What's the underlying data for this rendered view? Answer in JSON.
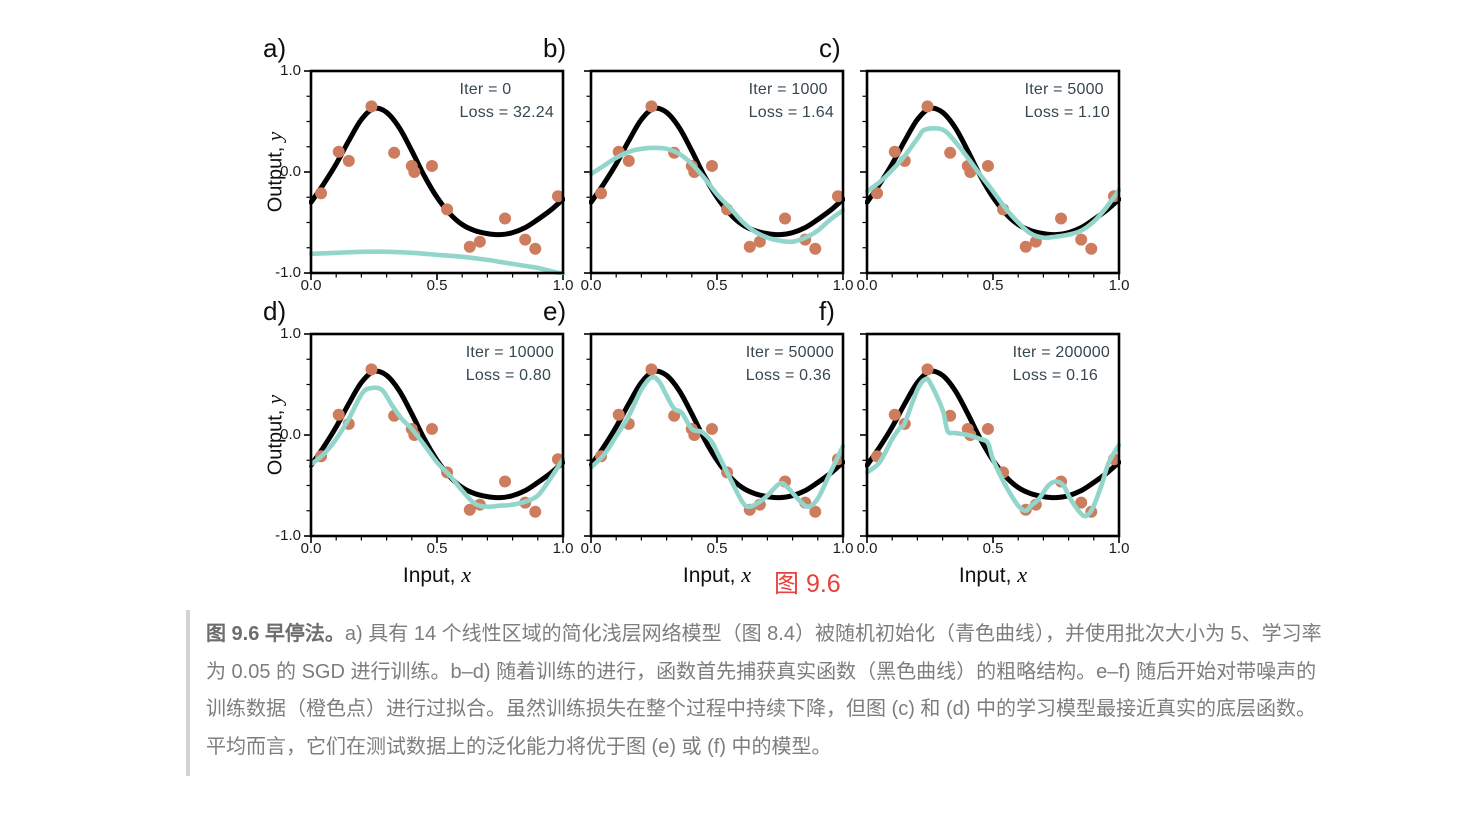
{
  "figure_label": "图 9.6",
  "figure_label_color": "#e8403a",
  "caption": {
    "lead": "图 9.6 早停法。",
    "body": "a) 具有 14 个线性区域的简化浅层网络模型（图 8.4）被随机初始化（青色曲线），并使用批次大小为 5、学习率为 0.05 的 SGD 进行训练。b–d) 随着训练的进行，函数首先捕获真实函数（黑色曲线）的粗略结构。e–f) 随后开始对带噪声的训练数据（橙色点）进行过拟合。虽然训练损失在整个过程中持续下降，但图 (c) 和 (d) 中的学习模型最接近真实的底层函数。平均而言，它们在测试数据上的泛化能力将优于图 (e) 或 (f) 中的模型。"
  },
  "chart_data": {
    "type": "line",
    "title": "",
    "xlabel": {
      "prefix": "Input, ",
      "var": "x"
    },
    "ylabel": {
      "prefix": "Output, ",
      "var": "y"
    },
    "xlim": [
      0,
      1
    ],
    "ylim": [
      -1,
      1
    ],
    "grid": false,
    "legend": "none",
    "x_tick_labels": [
      "0.0",
      "0.5",
      "1.0"
    ],
    "y_tick_labels": [
      "1.0",
      "0.0",
      "-1.0"
    ],
    "x_major_ticks": [
      0,
      0.5,
      1
    ],
    "x_minor_ticks": [
      0.1,
      0.2,
      0.3,
      0.4,
      0.6,
      0.7,
      0.8,
      0.9
    ],
    "y_major_ticks": [
      1,
      0,
      -1
    ],
    "y_minor_ticks": [
      0.75,
      0.5,
      0.25,
      -0.25,
      -0.5,
      -0.75
    ],
    "colors": {
      "true_function": "#000000",
      "model_curve": "#92d6cb",
      "data_points": "#cd7d5e",
      "annotation_text": "#36474f"
    },
    "true_function_points": [
      [
        0.0,
        -0.3
      ],
      [
        0.05,
        -0.12
      ],
      [
        0.1,
        0.08
      ],
      [
        0.15,
        0.31
      ],
      [
        0.2,
        0.52
      ],
      [
        0.25,
        0.63
      ],
      [
        0.3,
        0.59
      ],
      [
        0.35,
        0.44
      ],
      [
        0.4,
        0.21
      ],
      [
        0.45,
        -0.04
      ],
      [
        0.5,
        -0.25
      ],
      [
        0.55,
        -0.41
      ],
      [
        0.6,
        -0.52
      ],
      [
        0.65,
        -0.58
      ],
      [
        0.7,
        -0.61
      ],
      [
        0.75,
        -0.62
      ],
      [
        0.8,
        -0.6
      ],
      [
        0.85,
        -0.55
      ],
      [
        0.9,
        -0.47
      ],
      [
        0.95,
        -0.38
      ],
      [
        1.0,
        -0.27
      ]
    ],
    "data_points": [
      [
        0.04,
        -0.21
      ],
      [
        0.11,
        0.2
      ],
      [
        0.15,
        0.11
      ],
      [
        0.24,
        0.65
      ],
      [
        0.33,
        0.19
      ],
      [
        0.4,
        0.06
      ],
      [
        0.41,
        0.0
      ],
      [
        0.48,
        0.06
      ],
      [
        0.54,
        -0.37
      ],
      [
        0.63,
        -0.74
      ],
      [
        0.67,
        -0.69
      ],
      [
        0.77,
        -0.46
      ],
      [
        0.85,
        -0.67
      ],
      [
        0.89,
        -0.76
      ],
      [
        0.98,
        -0.24
      ]
    ],
    "panels": [
      {
        "label": "a)",
        "iteration": 0,
        "loss": 32.24,
        "iter_text": "Iter = 0",
        "loss_text": "Loss = 32.24",
        "model_curve": [
          [
            0.0,
            -0.81
          ],
          [
            0.1,
            -0.8
          ],
          [
            0.2,
            -0.79
          ],
          [
            0.3,
            -0.79
          ],
          [
            0.4,
            -0.8
          ],
          [
            0.5,
            -0.82
          ],
          [
            0.6,
            -0.84
          ],
          [
            0.7,
            -0.87
          ],
          [
            0.75,
            -0.89
          ],
          [
            0.8,
            -0.91
          ],
          [
            0.85,
            -0.93
          ],
          [
            0.9,
            -0.95
          ],
          [
            0.95,
            -0.98
          ],
          [
            1.0,
            -1.01
          ]
        ]
      },
      {
        "label": "b)",
        "iteration": 1000,
        "loss": 1.64,
        "iter_text": "Iter = 1000",
        "loss_text": "Loss = 1.64",
        "model_curve": [
          [
            0.0,
            -0.02
          ],
          [
            0.05,
            0.06
          ],
          [
            0.1,
            0.14
          ],
          [
            0.15,
            0.2
          ],
          [
            0.2,
            0.23
          ],
          [
            0.25,
            0.24
          ],
          [
            0.3,
            0.23
          ],
          [
            0.35,
            0.18
          ],
          [
            0.4,
            0.08
          ],
          [
            0.45,
            -0.06
          ],
          [
            0.5,
            -0.22
          ],
          [
            0.55,
            -0.35
          ],
          [
            0.6,
            -0.49
          ],
          [
            0.65,
            -0.59
          ],
          [
            0.7,
            -0.65
          ],
          [
            0.75,
            -0.68
          ],
          [
            0.8,
            -0.69
          ],
          [
            0.85,
            -0.65
          ],
          [
            0.9,
            -0.58
          ],
          [
            0.95,
            -0.47
          ],
          [
            1.0,
            -0.38
          ]
        ]
      },
      {
        "label": "c)",
        "iteration": 5000,
        "loss": 1.1,
        "iter_text": "Iter = 5000",
        "loss_text": "Loss = 1.10",
        "model_curve": [
          [
            0.0,
            -0.19
          ],
          [
            0.05,
            -0.1
          ],
          [
            0.1,
            0.02
          ],
          [
            0.15,
            0.16
          ],
          [
            0.2,
            0.33
          ],
          [
            0.23,
            0.42
          ],
          [
            0.3,
            0.42
          ],
          [
            0.35,
            0.3
          ],
          [
            0.4,
            0.14
          ],
          [
            0.45,
            -0.03
          ],
          [
            0.5,
            -0.19
          ],
          [
            0.55,
            -0.36
          ],
          [
            0.6,
            -0.5
          ],
          [
            0.65,
            -0.61
          ],
          [
            0.7,
            -0.65
          ],
          [
            0.75,
            -0.64
          ],
          [
            0.8,
            -0.62
          ],
          [
            0.85,
            -0.58
          ],
          [
            0.9,
            -0.49
          ],
          [
            0.95,
            -0.35
          ],
          [
            1.0,
            -0.18
          ]
        ]
      },
      {
        "label": "d)",
        "iteration": 10000,
        "loss": 0.8,
        "iter_text": "Iter = 10000",
        "loss_text": "Loss = 0.80",
        "model_curve": [
          [
            0.0,
            -0.29
          ],
          [
            0.05,
            -0.19
          ],
          [
            0.1,
            -0.04
          ],
          [
            0.15,
            0.16
          ],
          [
            0.2,
            0.4
          ],
          [
            0.23,
            0.46
          ],
          [
            0.28,
            0.45
          ],
          [
            0.32,
            0.3
          ],
          [
            0.36,
            0.16
          ],
          [
            0.4,
            0.06
          ],
          [
            0.45,
            -0.1
          ],
          [
            0.5,
            -0.27
          ],
          [
            0.55,
            -0.4
          ],
          [
            0.6,
            -0.55
          ],
          [
            0.65,
            -0.68
          ],
          [
            0.7,
            -0.71
          ],
          [
            0.75,
            -0.7
          ],
          [
            0.8,
            -0.69
          ],
          [
            0.85,
            -0.66
          ],
          [
            0.9,
            -0.6
          ],
          [
            0.95,
            -0.43
          ],
          [
            1.0,
            -0.24
          ]
        ]
      },
      {
        "label": "e)",
        "iteration": 50000,
        "loss": 0.36,
        "iter_text": "Iter = 50000",
        "loss_text": "Loss = 0.36",
        "model_curve": [
          [
            0.0,
            -0.32
          ],
          [
            0.05,
            -0.2
          ],
          [
            0.1,
            -0.01
          ],
          [
            0.15,
            0.19
          ],
          [
            0.2,
            0.45
          ],
          [
            0.24,
            0.57
          ],
          [
            0.27,
            0.53
          ],
          [
            0.3,
            0.39
          ],
          [
            0.33,
            0.26
          ],
          [
            0.36,
            0.22
          ],
          [
            0.4,
            0.06
          ],
          [
            0.44,
            0.03
          ],
          [
            0.48,
            -0.07
          ],
          [
            0.5,
            -0.17
          ],
          [
            0.54,
            -0.37
          ],
          [
            0.6,
            -0.66
          ],
          [
            0.63,
            -0.71
          ],
          [
            0.67,
            -0.66
          ],
          [
            0.7,
            -0.6
          ],
          [
            0.75,
            -0.48
          ],
          [
            0.78,
            -0.52
          ],
          [
            0.82,
            -0.63
          ],
          [
            0.86,
            -0.71
          ],
          [
            0.9,
            -0.63
          ],
          [
            0.95,
            -0.37
          ],
          [
            1.0,
            -0.11
          ]
        ]
      },
      {
        "label": "f)",
        "iteration": 200000,
        "loss": 0.16,
        "iter_text": "Iter = 200000",
        "loss_text": "Loss = 0.16",
        "model_curve": [
          [
            0.0,
            -0.37
          ],
          [
            0.05,
            -0.27
          ],
          [
            0.1,
            -0.04
          ],
          [
            0.13,
            0.07
          ],
          [
            0.15,
            0.12
          ],
          [
            0.2,
            0.45
          ],
          [
            0.23,
            0.55
          ],
          [
            0.25,
            0.52
          ],
          [
            0.3,
            0.25
          ],
          [
            0.32,
            0.04
          ],
          [
            0.35,
            0.02
          ],
          [
            0.4,
            0.0
          ],
          [
            0.45,
            -0.04
          ],
          [
            0.48,
            -0.08
          ],
          [
            0.5,
            -0.24
          ],
          [
            0.55,
            -0.5
          ],
          [
            0.6,
            -0.7
          ],
          [
            0.63,
            -0.75
          ],
          [
            0.65,
            -0.7
          ],
          [
            0.68,
            -0.64
          ],
          [
            0.72,
            -0.5
          ],
          [
            0.75,
            -0.46
          ],
          [
            0.78,
            -0.5
          ],
          [
            0.8,
            -0.6
          ],
          [
            0.83,
            -0.72
          ],
          [
            0.86,
            -0.8
          ],
          [
            0.88,
            -0.78
          ],
          [
            0.9,
            -0.7
          ],
          [
            0.93,
            -0.5
          ],
          [
            0.96,
            -0.27
          ],
          [
            1.0,
            -0.1
          ]
        ]
      }
    ]
  }
}
